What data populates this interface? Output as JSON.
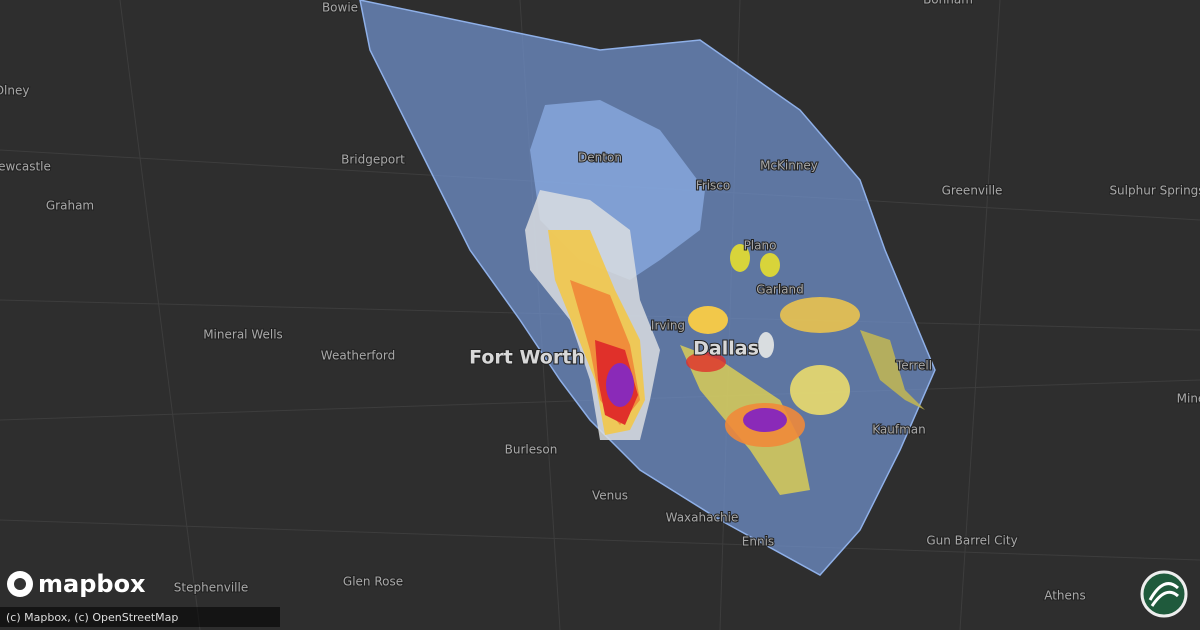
{
  "map": {
    "cities": [
      {
        "label": "Bowie",
        "major": false
      },
      {
        "label": "Bonham",
        "major": false
      },
      {
        "label": "Olney",
        "major": false
      },
      {
        "label": "Newcastle",
        "major": false
      },
      {
        "label": "Graham",
        "major": false
      },
      {
        "label": "Bridgeport",
        "major": false
      },
      {
        "label": "Denton",
        "major": false
      },
      {
        "label": "Frisco",
        "major": false
      },
      {
        "label": "McKinney",
        "major": false
      },
      {
        "label": "Greenville",
        "major": false
      },
      {
        "label": "Sulphur Springs",
        "major": false
      },
      {
        "label": "Plano",
        "major": false
      },
      {
        "label": "Garland",
        "major": false
      },
      {
        "label": "Mineral Wells",
        "major": false
      },
      {
        "label": "Weatherford",
        "major": false
      },
      {
        "label": "Fort Worth",
        "major": true
      },
      {
        "label": "Irving",
        "major": false
      },
      {
        "label": "Dallas",
        "major": true
      },
      {
        "label": "Terrell",
        "major": false
      },
      {
        "label": "Kaufman",
        "major": false
      },
      {
        "label": "Burleson",
        "major": false
      },
      {
        "label": "Venus",
        "major": false
      },
      {
        "label": "Waxahachie",
        "major": false
      },
      {
        "label": "Ennis",
        "major": false
      },
      {
        "label": "Gun Barrel City",
        "major": false
      },
      {
        "label": "Stephenville",
        "major": false
      },
      {
        "label": "Glen Rose",
        "major": false
      },
      {
        "label": "Athens",
        "major": false
      },
      {
        "label": "Mineola",
        "major": false
      }
    ],
    "logo": "mapbox",
    "attribution": "(c) Mapbox, (c) OpenStreetMap"
  }
}
